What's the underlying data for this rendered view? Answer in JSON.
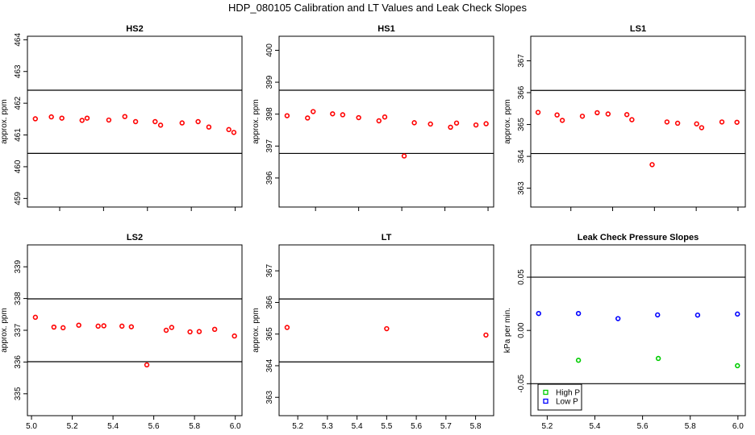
{
  "title": "HDP_080105 Calibration and LT Values and Leak Check Slopes",
  "chart_data": [
    {
      "type": "scatter",
      "title": "HS2",
      "ylabel": "approx. ppm",
      "xlabel": "",
      "xlim": [
        5.053,
        6.031
      ],
      "ylim": [
        458.73,
        464.11
      ],
      "xticks": [
        5.2,
        5.4,
        5.6,
        5.8,
        6.0
      ],
      "xtick_labels": [],
      "yticks": [
        459,
        460,
        461,
        462,
        463,
        464
      ],
      "hlines": [
        462.41,
        460.42
      ],
      "series": [
        {
          "color": "#ff0000",
          "x": [
            5.089,
            5.162,
            5.21,
            5.302,
            5.325,
            5.424,
            5.497,
            5.546,
            5.635,
            5.66,
            5.758,
            5.831,
            5.88,
            5.971,
            5.994
          ],
          "y": [
            461.51,
            461.57,
            461.53,
            461.46,
            461.53,
            461.47,
            461.58,
            461.42,
            461.42,
            461.31,
            461.38,
            461.42,
            461.25,
            461.17,
            461.08
          ]
        }
      ]
    },
    {
      "type": "scatter",
      "title": "HS1",
      "ylabel": "approx. ppm",
      "xlabel": "",
      "xlim": [
        5.031,
        6.026
      ],
      "ylim": [
        395.09,
        400.44
      ],
      "xticks": [
        5.2,
        5.4,
        5.6,
        5.8,
        6.0
      ],
      "xtick_labels": [],
      "yticks": [
        396,
        397,
        398,
        399,
        400
      ],
      "hlines": [
        398.75,
        396.77
      ],
      "series": [
        {
          "color": "#ff0000",
          "x": [
            5.068,
            5.163,
            5.189,
            5.279,
            5.326,
            5.4,
            5.494,
            5.521,
            5.611,
            5.658,
            5.733,
            5.826,
            5.854,
            5.944,
            5.991
          ],
          "y": [
            397.95,
            397.88,
            398.08,
            398.01,
            397.98,
            397.89,
            397.79,
            397.91,
            396.69,
            397.73,
            397.69,
            397.59,
            397.72,
            397.66,
            397.7
          ]
        }
      ]
    },
    {
      "type": "scatter",
      "title": "LS1",
      "ylabel": "approx. ppm",
      "xlabel": "",
      "xlim": [
        5.008,
        6.035
      ],
      "ylim": [
        362.41,
        367.77
      ],
      "xticks": [
        5.2,
        5.4,
        5.6,
        5.8,
        6.0
      ],
      "xtick_labels": [],
      "yticks": [
        363,
        364,
        365,
        366,
        367
      ],
      "hlines": [
        366.07,
        364.09
      ],
      "series": [
        {
          "color": "#ff0000",
          "x": [
            5.043,
            5.134,
            5.159,
            5.255,
            5.326,
            5.378,
            5.468,
            5.492,
            5.589,
            5.66,
            5.711,
            5.802,
            5.826,
            5.923,
            5.995
          ],
          "y": [
            365.38,
            365.3,
            365.13,
            365.26,
            365.37,
            365.33,
            365.31,
            365.15,
            363.74,
            365.08,
            365.04,
            365.02,
            364.9,
            365.08,
            365.07
          ]
        }
      ]
    },
    {
      "type": "scatter",
      "title": "LS2",
      "ylabel": "approx. ppm",
      "xlabel": "",
      "xlim": [
        4.98,
        6.033
      ],
      "ylim": [
        334.31,
        339.69
      ],
      "xticks": [
        5.0,
        5.2,
        5.4,
        5.6,
        5.8,
        6.0
      ],
      "xtick_labels": [
        "5.0",
        "5.2",
        "5.4",
        "5.6",
        "5.8",
        "6.0"
      ],
      "yticks": [
        335,
        336,
        337,
        338,
        339
      ],
      "hlines": [
        337.99,
        336.01
      ],
      "series": [
        {
          "color": "#ff0000",
          "x": [
            5.019,
            5.11,
            5.155,
            5.232,
            5.327,
            5.355,
            5.444,
            5.49,
            5.566,
            5.661,
            5.688,
            5.778,
            5.823,
            5.899,
            5.996
          ],
          "y": [
            337.41,
            337.1,
            337.08,
            337.16,
            337.13,
            337.14,
            337.13,
            337.11,
            335.91,
            337.0,
            337.09,
            336.95,
            336.96,
            337.03,
            336.82
          ]
        }
      ]
    },
    {
      "type": "scatter",
      "title": "LT",
      "ylabel": "approx. ppm",
      "xlabel": "",
      "xlim": [
        5.137,
        5.861
      ],
      "ylim": [
        362.42,
        367.82
      ],
      "xticks": [
        5.2,
        5.3,
        5.4,
        5.5,
        5.6,
        5.7,
        5.8
      ],
      "xtick_labels": [
        "5.2",
        "5.3",
        "5.4",
        "5.5",
        "5.6",
        "5.7",
        "5.8"
      ],
      "yticks": [
        363,
        364,
        365,
        366,
        367
      ],
      "hlines": [
        366.11,
        364.12
      ],
      "series": [
        {
          "color": "#ff0000",
          "x": [
            5.164,
            5.5,
            5.835
          ],
          "y": [
            365.21,
            365.17,
            364.97
          ]
        }
      ]
    },
    {
      "type": "scatter",
      "title": "Leak Check Pressure Slopes",
      "ylabel": "kPa per min.",
      "xlabel": "",
      "xlim": [
        5.131,
        6.031
      ],
      "ylim": [
        -0.08,
        0.0803
      ],
      "xticks": [
        5.2,
        5.4,
        5.6,
        5.8,
        6.0
      ],
      "xtick_labels": [
        "5.2",
        "5.4",
        "5.6",
        "5.8",
        "6.0"
      ],
      "yticks": [
        -0.05,
        0.0,
        0.05
      ],
      "ytick_labels": [
        "-0.05",
        "0.00",
        "0.05"
      ],
      "hlines": [
        0.05,
        -0.05
      ],
      "legend": {
        "position": "bottom-left"
      },
      "series": [
        {
          "name": "High P",
          "color": "#00cc00",
          "x": [
            5.331,
            5.666,
            5.998
          ],
          "y": [
            -0.028,
            -0.0263,
            -0.0331
          ]
        },
        {
          "name": "Low P",
          "color": "#0000ff",
          "x": [
            5.164,
            5.331,
            5.497,
            5.663,
            5.831,
            5.998
          ],
          "y": [
            0.0159,
            0.0159,
            0.0111,
            0.0146,
            0.0144,
            0.0154
          ]
        }
      ]
    }
  ]
}
